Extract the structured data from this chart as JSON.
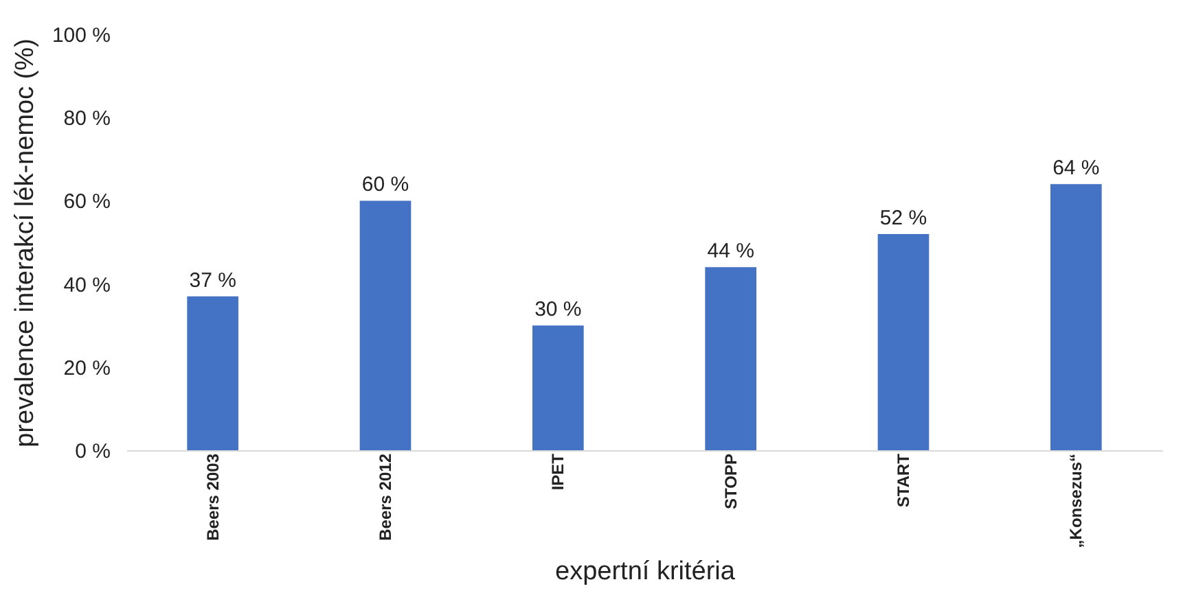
{
  "chart_data": {
    "type": "bar",
    "xlabel": "expertní kritéria",
    "ylabel": "prevalence interakcí lék-nemoc (%)",
    "categories": [
      "Beers 2003",
      "Beers 2012",
      "IPET",
      "STOPP",
      "START",
      "„Konsezus“"
    ],
    "values": [
      37,
      60,
      30,
      44,
      52,
      64
    ],
    "value_labels": [
      "37 %",
      "60 %",
      "30 %",
      "44 %",
      "52 %",
      "64 %"
    ],
    "color": "#4472c4",
    "ylim": [
      0,
      100
    ],
    "yticks": [
      {
        "value": 0,
        "label": "0 %"
      },
      {
        "value": 20,
        "label": "20 %"
      },
      {
        "value": 40,
        "label": "40 %"
      },
      {
        "value": 60,
        "label": "60 %"
      },
      {
        "value": 80,
        "label": "80 %"
      },
      {
        "value": 100,
        "label": "100 %"
      }
    ],
    "grid": false
  }
}
